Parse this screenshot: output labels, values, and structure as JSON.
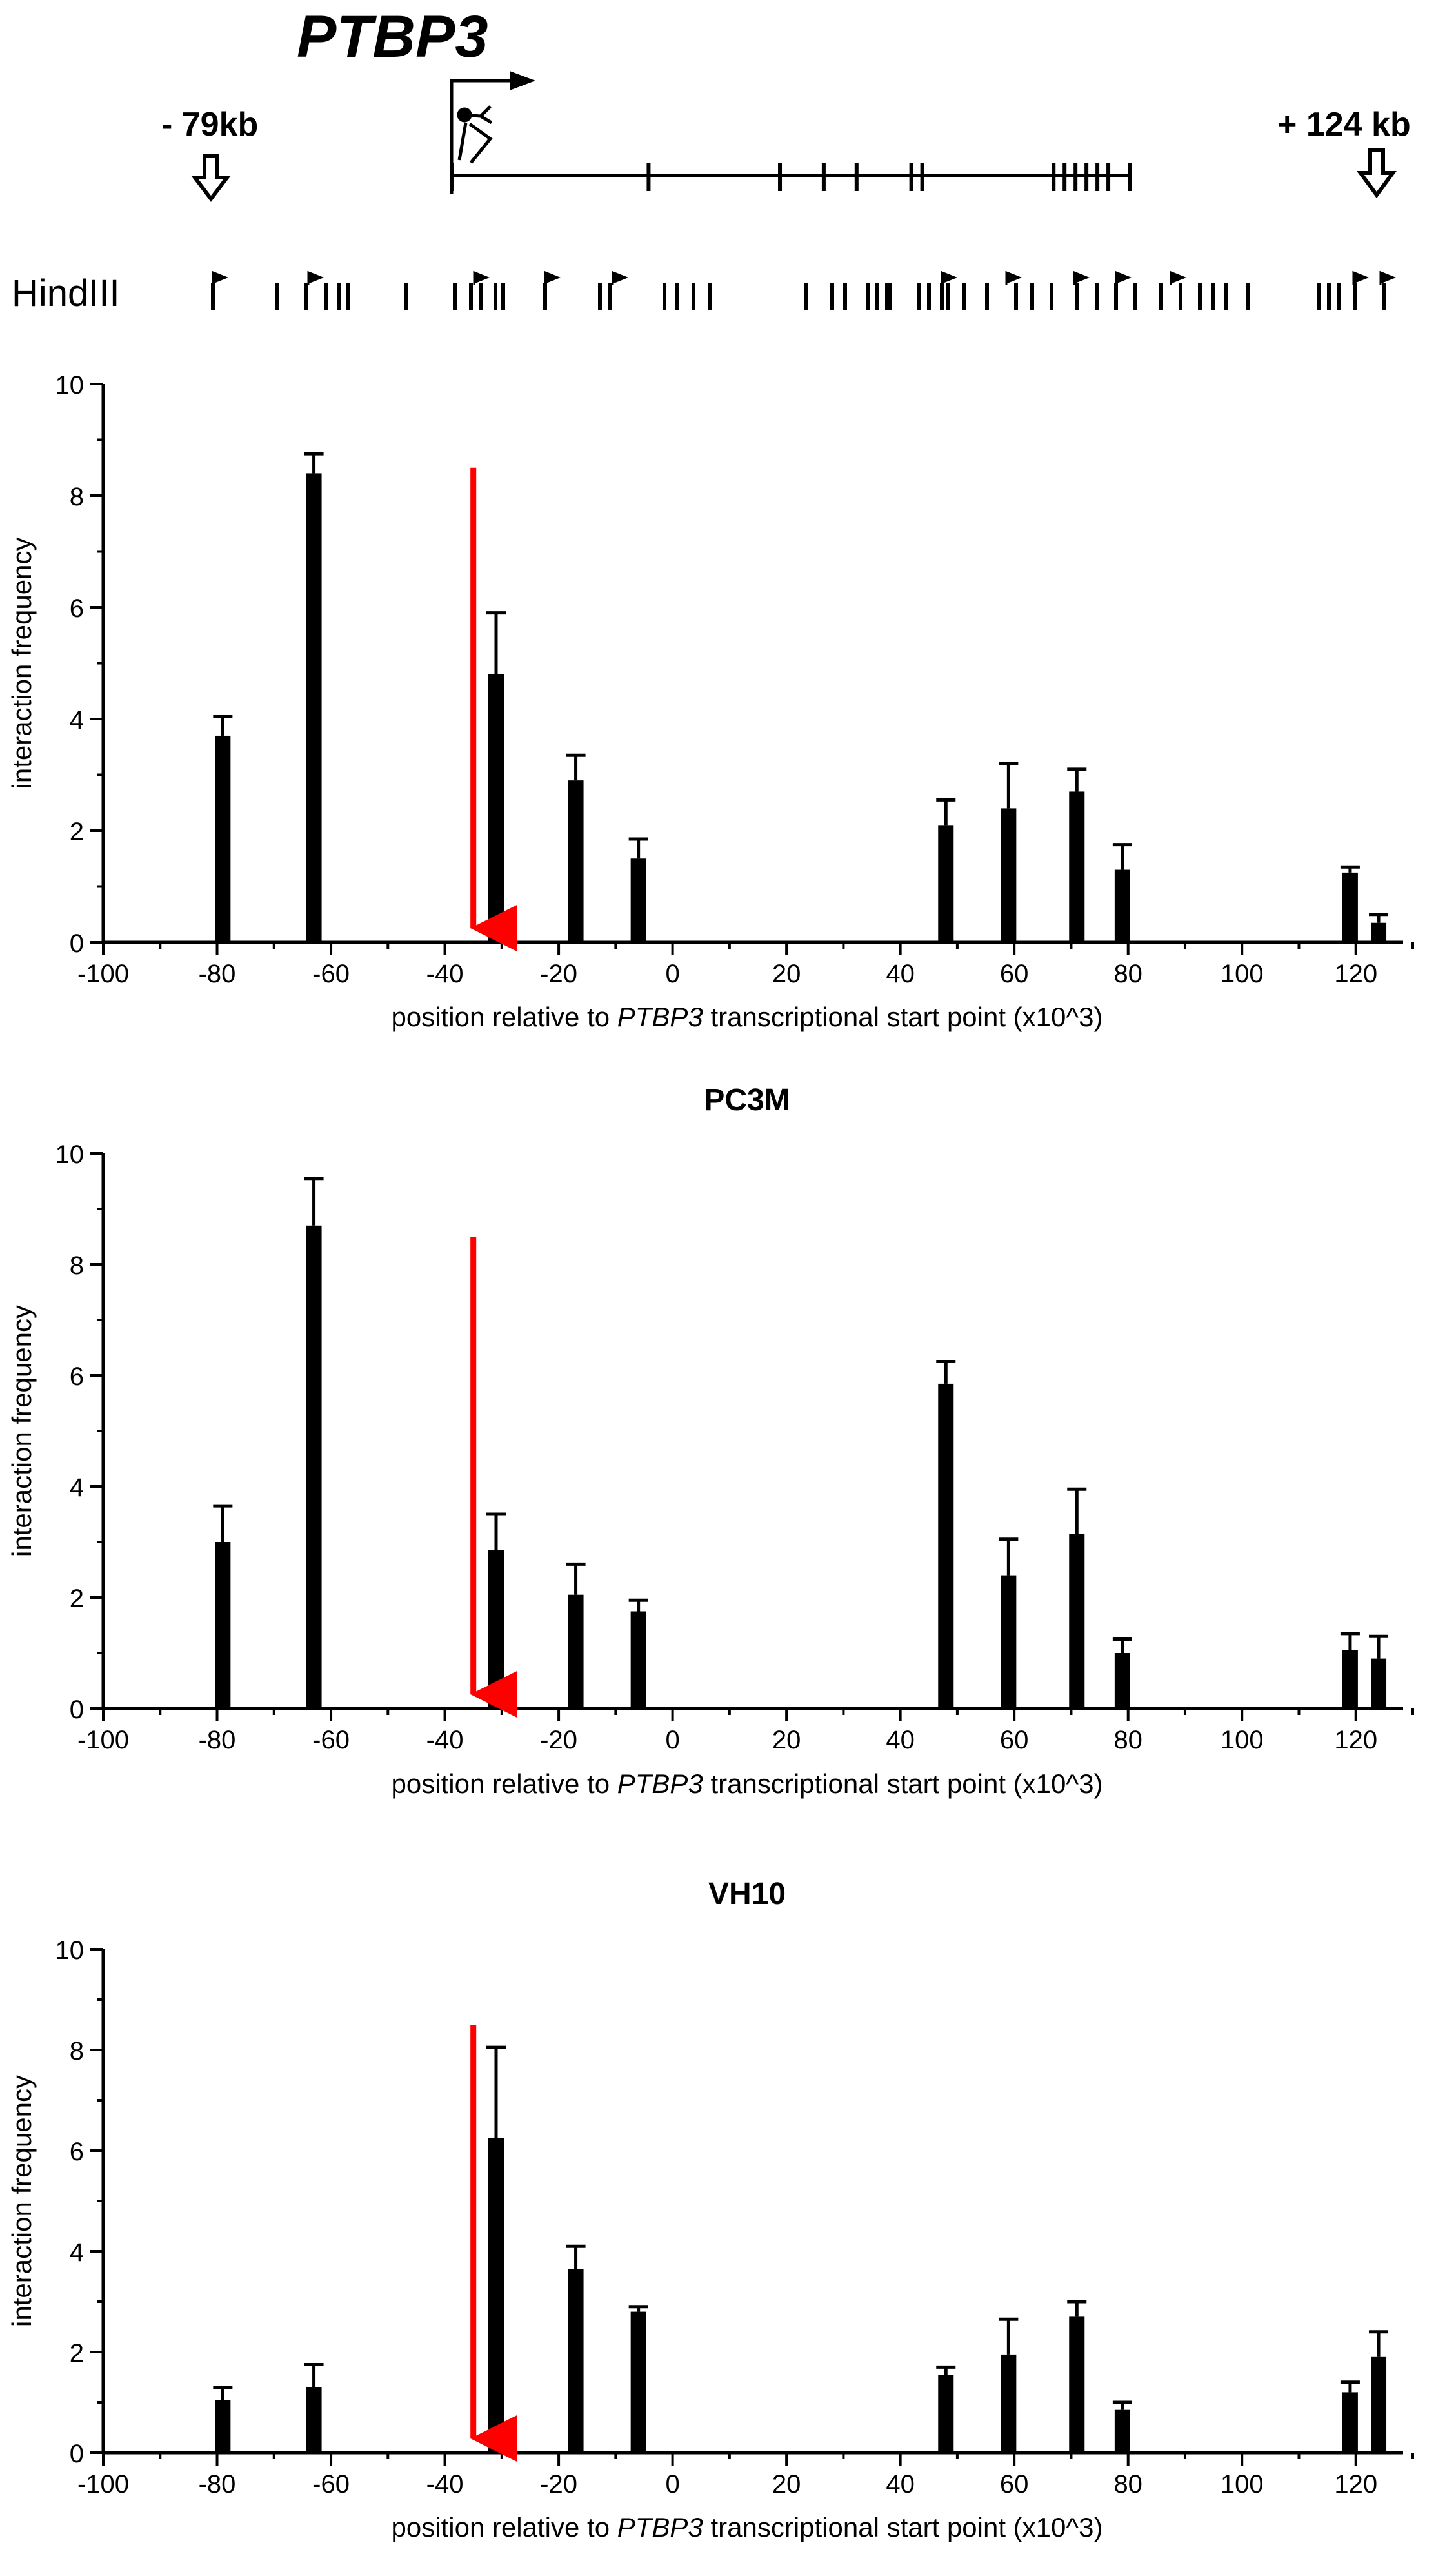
{
  "gene_map": {
    "gene_name": "PTBP3",
    "left_label": "- 79kb",
    "right_label": "+ 124 kb",
    "enzyme_label": "HindIII",
    "exon_positions_kb": [
      0,
      18,
      30,
      34,
      37,
      42,
      43,
      55,
      56,
      57,
      58,
      59,
      60,
      62
    ]
  },
  "chart_data": [
    {
      "type": "bar",
      "title": "",
      "xlabel_prefix": "position relative to ",
      "xlabel_gene": "PTBP3",
      "xlabel_suffix": " transcriptional start point (x10^3)",
      "ylabel": "interaction frequency",
      "xlim": [
        -100,
        130
      ],
      "ylim": [
        0,
        10
      ],
      "x_ticks": [
        -100,
        -80,
        -60,
        -40,
        -20,
        0,
        20,
        40,
        60,
        80,
        100,
        120
      ],
      "y_ticks": [
        0,
        2,
        4,
        6,
        8,
        10
      ],
      "highlight_x": -35,
      "x": [
        -79,
        -63,
        -31,
        -17,
        -6,
        48,
        59,
        71,
        79,
        119,
        124
      ],
      "values": [
        3.7,
        8.4,
        4.8,
        2.9,
        1.5,
        2.1,
        2.4,
        2.7,
        1.3,
        1.25,
        0.35
      ],
      "error_upper": [
        0.35,
        0.35,
        1.1,
        0.45,
        0.35,
        0.45,
        0.8,
        0.4,
        0.45,
        0.1,
        0.15
      ]
    },
    {
      "type": "bar",
      "title": "PC3M",
      "xlabel_prefix": "position relative to ",
      "xlabel_gene": "PTBP3",
      "xlabel_suffix": " transcriptional start point (x10^3)",
      "ylabel": "interaction frequency",
      "xlim": [
        -100,
        130
      ],
      "ylim": [
        0,
        10
      ],
      "x_ticks": [
        -100,
        -80,
        -60,
        -40,
        -20,
        0,
        20,
        40,
        60,
        80,
        100,
        120
      ],
      "y_ticks": [
        0,
        2,
        4,
        6,
        8,
        10
      ],
      "highlight_x": -35,
      "x": [
        -79,
        -63,
        -31,
        -17,
        -6,
        48,
        59,
        71,
        79,
        119,
        124
      ],
      "values": [
        3.0,
        8.7,
        2.85,
        2.05,
        1.75,
        5.85,
        2.4,
        3.15,
        1.0,
        1.05,
        0.9
      ],
      "error_upper": [
        0.65,
        0.85,
        0.65,
        0.55,
        0.2,
        0.4,
        0.65,
        0.8,
        0.25,
        0.3,
        0.4
      ]
    },
    {
      "type": "bar",
      "title": "VH10",
      "xlabel_prefix": "position relative to ",
      "xlabel_gene": "PTBP3",
      "xlabel_suffix": " transcriptional start point (x10^3)",
      "ylabel": "interaction frequency",
      "xlim": [
        -100,
        130
      ],
      "ylim": [
        0,
        10
      ],
      "x_ticks": [
        -100,
        -80,
        -60,
        -40,
        -20,
        0,
        20,
        40,
        60,
        80,
        100,
        120
      ],
      "y_ticks": [
        0,
        2,
        4,
        6,
        8,
        10
      ],
      "highlight_x": -35,
      "x": [
        -79,
        -63,
        -31,
        -17,
        -6,
        48,
        59,
        71,
        79,
        119,
        124
      ],
      "values": [
        1.05,
        1.3,
        6.25,
        3.65,
        2.8,
        1.55,
        1.95,
        2.7,
        0.85,
        1.2,
        1.9
      ],
      "error_upper": [
        0.25,
        0.45,
        1.8,
        0.45,
        0.1,
        0.15,
        0.7,
        0.3,
        0.15,
        0.2,
        0.5
      ]
    }
  ]
}
